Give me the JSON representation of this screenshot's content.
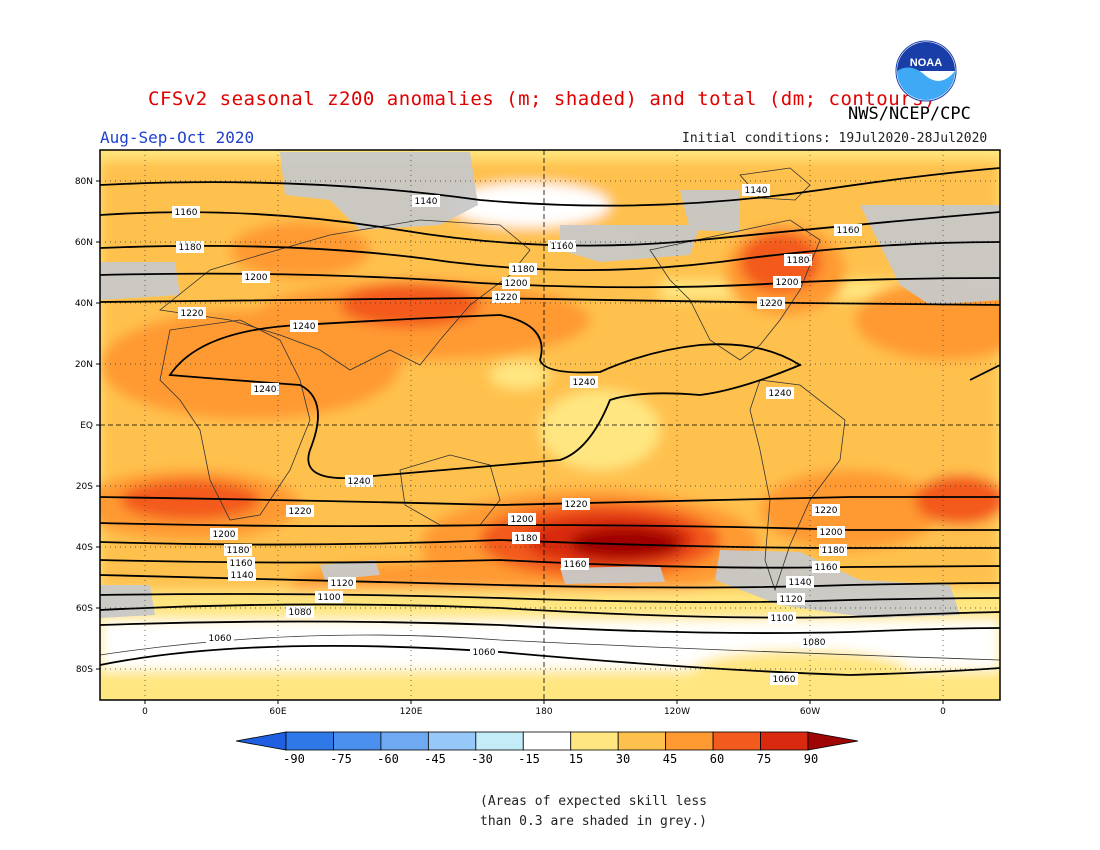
{
  "header": {
    "title": "CFSv2 seasonal z200 anomalies (m; shaded) and total (dm; contours)",
    "season": "Aug-Sep-Oct 2020",
    "agency": "NWS/NCEP/CPC",
    "initial_conditions": "Initial conditions: 19Jul2020-28Jul2020",
    "logo_text": "NOAA"
  },
  "map": {
    "lat_labels": [
      "80N",
      "60N",
      "40N",
      "20N",
      "EQ",
      "20S",
      "40S",
      "60S",
      "80S"
    ],
    "lon_labels": [
      "0",
      "60E",
      "120E",
      "180",
      "120W",
      "60W",
      "0"
    ],
    "contour_labels": [
      "1140",
      "1160",
      "1160",
      "1180",
      "1180",
      "1200",
      "1200",
      "1220",
      "1220",
      "1240",
      "1240",
      "1240",
      "1240",
      "1220",
      "1200",
      "1180",
      "1160",
      "1140",
      "1120",
      "1100",
      "1080",
      "1060",
      "1060",
      "1180",
      "1200",
      "1220",
      "1160",
      "1180",
      "1200",
      "1220",
      "1240",
      "1220",
      "1200",
      "1180",
      "1160",
      "1140",
      "1120",
      "1100",
      "1080",
      "1060",
      "1140",
      "1160"
    ],
    "colors": {
      "skill_grey": "#c8c8c8",
      "a15": "#ffe680",
      "a30": "#ffc14d",
      "a45": "#ff9a33",
      "a60": "#f35a1e",
      "a75": "#d92a10",
      "a90": "#a00505"
    }
  },
  "colorbar": {
    "labels": [
      "-90",
      "-75",
      "-60",
      "-45",
      "-30",
      "-15",
      "15",
      "30",
      "45",
      "60",
      "75",
      "90"
    ],
    "colors": [
      "#1f5fe0",
      "#2e78e8",
      "#4b90ee",
      "#6fa9f2",
      "#96c9f7",
      "#c3ecf8",
      "#ffffff",
      "#ffe680",
      "#ffc14d",
      "#ff9a33",
      "#f35a1e",
      "#d92a10",
      "#a00505"
    ]
  },
  "footnote": {
    "line1": "(Areas of expected skill less",
    "line2": "than 0.3 are shaded in grey.)"
  }
}
